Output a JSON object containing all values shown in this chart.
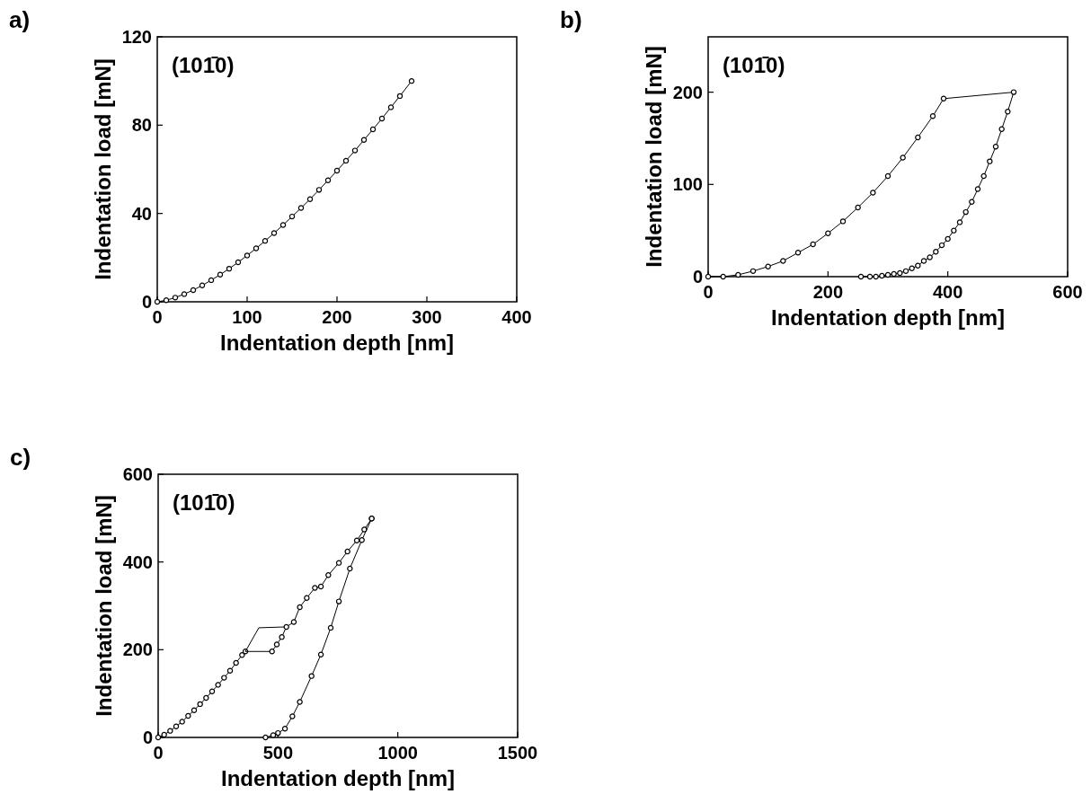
{
  "chart_data": [
    {
      "type": "line",
      "title": "a)",
      "xlabel": "Indentation depth [nm]",
      "ylabel": "Indentation load [mN]",
      "annotations": [
        "(101̄0)"
      ],
      "xlim": [
        0,
        400
      ],
      "xticks": [
        0,
        100,
        200,
        300,
        400
      ],
      "ylim": [
        0,
        120
      ],
      "yticks": [
        0,
        40,
        80,
        120
      ],
      "marker": "circle",
      "line_style": "solid",
      "series": [
        {
          "color": "#000000",
          "x": [
            0,
            10,
            20,
            30,
            40,
            50,
            60,
            70,
            80,
            90,
            100,
            110,
            120,
            130,
            140,
            150,
            160,
            170,
            180,
            190,
            200,
            210,
            220,
            230,
            240,
            250,
            260,
            270,
            283
          ],
          "values": [
            0,
            0.7,
            1.9,
            3.5,
            5.3,
            7.4,
            9.8,
            12.3,
            15,
            17.9,
            21,
            24.2,
            27.6,
            31.1,
            34.8,
            38.6,
            42.5,
            46.5,
            50.7,
            55,
            59.4,
            63.9,
            68.5,
            73.3,
            78.1,
            83,
            88.1,
            93.2,
            100
          ]
        }
      ]
    },
    {
      "type": "line",
      "title": "b)",
      "xlabel": "Indentation depth [nm]",
      "ylabel": "Indentation load [mN]",
      "annotations": [
        "(101̄0)"
      ],
      "xlim": [
        0,
        600
      ],
      "xticks": [
        0,
        200,
        400,
        600
      ],
      "ylim": [
        0,
        260
      ],
      "yticks": [
        0,
        100,
        200
      ],
      "marker": "circle",
      "line_style": "solid",
      "series": [
        {
          "color": "#000000",
          "x": [
            0,
            25,
            50,
            75,
            100,
            125,
            150,
            175,
            200,
            225,
            250,
            275,
            300,
            325,
            350,
            375,
            393,
            510,
            500,
            490,
            480,
            470,
            460,
            450,
            440,
            430,
            420,
            410,
            400,
            390,
            380,
            370,
            360,
            350,
            340,
            330,
            320,
            310,
            300,
            290,
            280,
            270,
            255
          ],
          "values": [
            0,
            0,
            2,
            6,
            11,
            17,
            26,
            35,
            47,
            60,
            75,
            91,
            109,
            129,
            151,
            174,
            193,
            200,
            179,
            160,
            141,
            125,
            109,
            95,
            81,
            70,
            59,
            50,
            41,
            34,
            27,
            21,
            17,
            12,
            9,
            6,
            4,
            3,
            2,
            1,
            0,
            0,
            0
          ]
        }
      ]
    },
    {
      "type": "line",
      "title": "c)",
      "xlabel": "Indentation depth [nm]",
      "ylabel": "Indentation load [mN]",
      "annotations": [
        "(101̄0)"
      ],
      "xlim": [
        0,
        1500
      ],
      "xticks": [
        0,
        500,
        1000,
        1500
      ],
      "ylim": [
        0,
        600
      ],
      "yticks": [
        0,
        200,
        400,
        600
      ],
      "marker": "circle",
      "line_style": "solid",
      "series": [
        {
          "color": "#000000",
          "x": [
            0,
            25,
            50,
            75,
            100,
            125,
            150,
            175,
            200,
            225,
            250,
            275,
            300,
            325,
            350,
            364
          ],
          "values": [
            0,
            6,
            15,
            25,
            36,
            49,
            62,
            76,
            90,
            105,
            120,
            136,
            152,
            170,
            188,
            196
          ]
        },
        {
          "color": "#000000",
          "marker": "none",
          "x": [
            475,
            364,
            420,
            535
          ],
          "values": [
            196,
            196,
            250,
            252
          ]
        },
        {
          "color": "#000000",
          "x": [
            475,
            495,
            516,
            535,
            566,
            591,
            620,
            654,
            679,
            710,
            754,
            790,
            829,
            860,
            891
          ],
          "values": [
            196,
            212,
            229,
            252,
            263,
            297,
            318,
            341,
            344,
            370,
            398,
            424,
            449,
            474,
            499
          ]
        },
        {
          "color": "#000000",
          "x": [
            891,
            850,
            800,
            754,
            720,
            679,
            640,
            591,
            560,
            529,
            500,
            480,
            448
          ],
          "values": [
            499,
            450,
            385,
            310,
            250,
            189,
            140,
            81,
            48,
            20,
            10,
            5,
            0
          ]
        }
      ]
    }
  ]
}
